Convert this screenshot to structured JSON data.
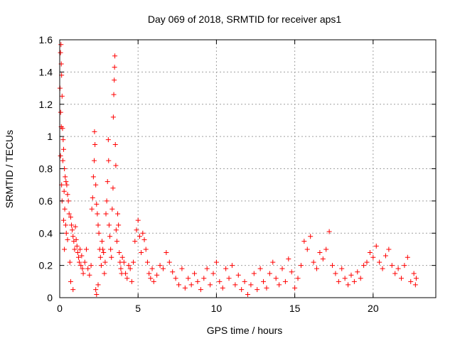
{
  "chart_data": {
    "type": "scatter",
    "title": "Day 069 of 2018, SRMTID for receiver aps1",
    "xlabel": "GPS time / hours",
    "ylabel": "SRMTID / TECUs",
    "xlim": [
      0,
      24
    ],
    "ylim": [
      0,
      1.6
    ],
    "xticks": [
      0,
      5,
      10,
      15,
      20
    ],
    "xtick_labels": [
      "0",
      "5",
      "10",
      "15",
      "20"
    ],
    "yticks": [
      0,
      0.2,
      0.4,
      0.6,
      0.8,
      1.0,
      1.2,
      1.4,
      1.6
    ],
    "ytick_labels": [
      "0",
      "0.2",
      "0.4",
      "0.6",
      "0.8",
      "1",
      "1.2",
      "1.4",
      "1.6"
    ],
    "grid": true,
    "marker": "+",
    "color": "#ff0000",
    "series": [
      {
        "name": "SRMTID",
        "points": [
          [
            0.02,
            1.3
          ],
          [
            0.05,
            1.52
          ],
          [
            0.08,
            1.57
          ],
          [
            0.1,
            1.45
          ],
          [
            0.12,
            1.38
          ],
          [
            0.15,
            1.25
          ],
          [
            0.06,
            1.15
          ],
          [
            0.1,
            1.06
          ],
          [
            0.18,
            1.05
          ],
          [
            0.22,
            0.98
          ],
          [
            0.25,
            0.92
          ],
          [
            0.05,
            0.88
          ],
          [
            0.2,
            0.85
          ],
          [
            0.3,
            0.8
          ],
          [
            0.35,
            0.75
          ],
          [
            0.12,
            0.7
          ],
          [
            0.28,
            0.66
          ],
          [
            0.4,
            0.72
          ],
          [
            0.45,
            0.7
          ],
          [
            0.5,
            0.64
          ],
          [
            0.15,
            0.6
          ],
          [
            0.32,
            0.55
          ],
          [
            0.55,
            0.6
          ],
          [
            0.6,
            0.52
          ],
          [
            0.25,
            0.48
          ],
          [
            0.38,
            0.45
          ],
          [
            0.7,
            0.5
          ],
          [
            0.75,
            0.45
          ],
          [
            0.42,
            0.4
          ],
          [
            0.8,
            0.42
          ],
          [
            0.5,
            0.36
          ],
          [
            0.85,
            0.38
          ],
          [
            0.9,
            0.35
          ],
          [
            0.3,
            0.3
          ],
          [
            0.95,
            0.3
          ],
          [
            1.0,
            0.44
          ],
          [
            1.05,
            0.36
          ],
          [
            1.1,
            0.32
          ],
          [
            1.15,
            0.28
          ],
          [
            0.65,
            0.22
          ],
          [
            1.2,
            0.25
          ],
          [
            1.25,
            0.22
          ],
          [
            1.3,
            0.3
          ],
          [
            1.35,
            0.2
          ],
          [
            1.4,
            0.26
          ],
          [
            0.7,
            0.1
          ],
          [
            0.85,
            0.05
          ],
          [
            1.45,
            0.18
          ],
          [
            1.5,
            0.15
          ],
          [
            1.6,
            0.22
          ],
          [
            1.7,
            0.3
          ],
          [
            1.8,
            0.18
          ],
          [
            1.9,
            0.14
          ],
          [
            2.0,
            0.2
          ],
          [
            2.05,
            0.55
          ],
          [
            2.1,
            0.62
          ],
          [
            2.15,
            0.75
          ],
          [
            2.2,
            0.85
          ],
          [
            2.22,
            1.03
          ],
          [
            2.25,
            0.95
          ],
          [
            2.3,
            0.7
          ],
          [
            2.35,
            0.58
          ],
          [
            2.4,
            0.52
          ],
          [
            2.45,
            0.45
          ],
          [
            2.5,
            0.4
          ],
          [
            2.55,
            0.3
          ],
          [
            2.3,
            0.05
          ],
          [
            2.35,
            0.02
          ],
          [
            2.45,
            0.08
          ],
          [
            2.6,
            0.25
          ],
          [
            2.65,
            0.2
          ],
          [
            2.7,
            0.35
          ],
          [
            2.75,
            0.3
          ],
          [
            2.8,
            0.28
          ],
          [
            2.85,
            0.15
          ],
          [
            2.9,
            0.22
          ],
          [
            2.95,
            0.52
          ],
          [
            3.0,
            0.6
          ],
          [
            3.05,
            0.72
          ],
          [
            3.1,
            0.98
          ],
          [
            3.12,
            0.85
          ],
          [
            3.15,
            0.45
          ],
          [
            3.2,
            0.38
          ],
          [
            3.25,
            0.3
          ],
          [
            3.3,
            0.25
          ],
          [
            3.35,
            0.55
          ],
          [
            3.4,
            0.68
          ],
          [
            3.42,
            1.12
          ],
          [
            3.45,
            1.26
          ],
          [
            3.48,
            1.35
          ],
          [
            3.5,
            1.43
          ],
          [
            3.52,
            1.5
          ],
          [
            3.55,
            0.95
          ],
          [
            3.58,
            0.82
          ],
          [
            3.6,
            0.42
          ],
          [
            3.65,
            0.35
          ],
          [
            3.7,
            0.52
          ],
          [
            3.75,
            0.45
          ],
          [
            3.8,
            0.28
          ],
          [
            3.85,
            0.22
          ],
          [
            3.9,
            0.18
          ],
          [
            3.95,
            0.15
          ],
          [
            4.0,
            0.25
          ],
          [
            4.1,
            0.22
          ],
          [
            4.2,
            0.15
          ],
          [
            4.3,
            0.12
          ],
          [
            4.4,
            0.2
          ],
          [
            4.5,
            0.18
          ],
          [
            4.6,
            0.1
          ],
          [
            4.7,
            0.22
          ],
          [
            4.8,
            0.35
          ],
          [
            4.9,
            0.42
          ],
          [
            5.0,
            0.48
          ],
          [
            5.1,
            0.38
          ],
          [
            5.2,
            0.28
          ],
          [
            5.3,
            0.4
          ],
          [
            5.4,
            0.36
          ],
          [
            5.5,
            0.3
          ],
          [
            5.6,
            0.22
          ],
          [
            5.7,
            0.15
          ],
          [
            5.8,
            0.12
          ],
          [
            5.9,
            0.18
          ],
          [
            6.0,
            0.1
          ],
          [
            6.2,
            0.14
          ],
          [
            6.4,
            0.2
          ],
          [
            6.6,
            0.18
          ],
          [
            6.8,
            0.28
          ],
          [
            7.0,
            0.22
          ],
          [
            7.2,
            0.16
          ],
          [
            7.4,
            0.12
          ],
          [
            7.6,
            0.08
          ],
          [
            7.8,
            0.18
          ],
          [
            8.0,
            0.06
          ],
          [
            8.2,
            0.12
          ],
          [
            8.4,
            0.08
          ],
          [
            8.6,
            0.15
          ],
          [
            8.8,
            0.1
          ],
          [
            9.0,
            0.05
          ],
          [
            9.2,
            0.12
          ],
          [
            9.4,
            0.18
          ],
          [
            9.6,
            0.08
          ],
          [
            9.8,
            0.15
          ],
          [
            10.0,
            0.22
          ],
          [
            10.2,
            0.1
          ],
          [
            10.4,
            0.06
          ],
          [
            10.6,
            0.18
          ],
          [
            10.8,
            0.12
          ],
          [
            11.0,
            0.2
          ],
          [
            11.2,
            0.08
          ],
          [
            11.4,
            0.14
          ],
          [
            11.6,
            0.05
          ],
          [
            11.8,
            0.1
          ],
          [
            12.0,
            0.02
          ],
          [
            12.2,
            0.08
          ],
          [
            12.4,
            0.15
          ],
          [
            12.6,
            0.05
          ],
          [
            12.8,
            0.18
          ],
          [
            13.0,
            0.1
          ],
          [
            13.2,
            0.06
          ],
          [
            13.4,
            0.15
          ],
          [
            13.6,
            0.22
          ],
          [
            13.8,
            0.12
          ],
          [
            14.0,
            0.08
          ],
          [
            14.2,
            0.18
          ],
          [
            14.4,
            0.1
          ],
          [
            14.6,
            0.24
          ],
          [
            14.8,
            0.16
          ],
          [
            15.0,
            0.06
          ],
          [
            15.2,
            0.12
          ],
          [
            15.4,
            0.2
          ],
          [
            15.6,
            0.35
          ],
          [
            15.8,
            0.3
          ],
          [
            16.0,
            0.38
          ],
          [
            16.2,
            0.22
          ],
          [
            16.4,
            0.18
          ],
          [
            16.6,
            0.28
          ],
          [
            16.8,
            0.24
          ],
          [
            17.0,
            0.3
          ],
          [
            17.2,
            0.41
          ],
          [
            17.4,
            0.2
          ],
          [
            17.6,
            0.15
          ],
          [
            17.8,
            0.1
          ],
          [
            18.0,
            0.18
          ],
          [
            18.2,
            0.12
          ],
          [
            18.4,
            0.08
          ],
          [
            18.6,
            0.14
          ],
          [
            18.8,
            0.1
          ],
          [
            19.0,
            0.16
          ],
          [
            19.2,
            0.12
          ],
          [
            19.4,
            0.2
          ],
          [
            19.6,
            0.22
          ],
          [
            19.8,
            0.28
          ],
          [
            20.0,
            0.25
          ],
          [
            20.2,
            0.32
          ],
          [
            20.4,
            0.22
          ],
          [
            20.6,
            0.18
          ],
          [
            20.8,
            0.26
          ],
          [
            21.0,
            0.3
          ],
          [
            21.2,
            0.2
          ],
          [
            21.4,
            0.15
          ],
          [
            21.6,
            0.18
          ],
          [
            21.8,
            0.12
          ],
          [
            22.0,
            0.2
          ],
          [
            22.2,
            0.25
          ],
          [
            22.4,
            0.1
          ],
          [
            22.6,
            0.15
          ],
          [
            22.7,
            0.08
          ],
          [
            22.75,
            0.12
          ]
        ]
      }
    ]
  }
}
